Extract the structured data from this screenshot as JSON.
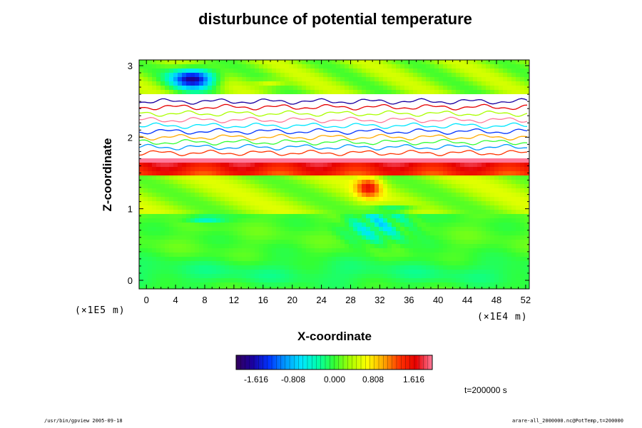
{
  "chart_data": {
    "type": "heatmap",
    "title": "disturbunce of potential temperature",
    "xlabel": "X-coordinate",
    "ylabel": "Z-coordinate",
    "x_unit": "(×1E4 m)",
    "y_unit": "(×1E5 m)",
    "x_ticks": [
      "0",
      "4",
      "8",
      "12",
      "16",
      "20",
      "24",
      "28",
      "32",
      "36",
      "40",
      "44",
      "48",
      "52"
    ],
    "y_ticks": [
      "0",
      "1",
      "2",
      "3"
    ],
    "xlim": [
      -1,
      52.5
    ],
    "ylim": [
      -0.12,
      3.08
    ],
    "colorbar": {
      "ticks": [
        "-1.616",
        "-0.808",
        "0.000",
        "0.808",
        "1.616"
      ],
      "range": [
        -2.2,
        2.2
      ],
      "colors": [
        "#33005a",
        "#1a00a0",
        "#0033ff",
        "#0099ff",
        "#00e6ff",
        "#00ffaa",
        "#33ff33",
        "#aaff00",
        "#ffff00",
        "#ffaa00",
        "#ff3300",
        "#e60000",
        "#ff7a9a"
      ]
    },
    "time_label": "t=200000 s",
    "regions": [
      {
        "z": [
          -0.12,
          0.95
        ],
        "value": 0.05,
        "note": "lower layer, near zero"
      },
      {
        "z": [
          0.95,
          1.45
        ],
        "value": 0.45,
        "note": "green-yellow band"
      },
      {
        "z": [
          1.45,
          1.72
        ],
        "value": 1.7,
        "note": "strong positive band"
      },
      {
        "z": [
          1.72,
          2.55
        ],
        "value": null,
        "note": "values out of range (blank)"
      },
      {
        "z": [
          2.55,
          3.08
        ],
        "value": 0.2,
        "note": "upper layer with negative patch near x=6"
      }
    ],
    "annotations": {
      "negative_plume_x": [
        26,
        38
      ],
      "negative_plume_z": [
        0.5,
        1.1
      ],
      "positive_core_x": [
        29,
        33
      ],
      "positive_core_z": [
        1.2,
        1.5
      ],
      "upper_negative_patch_x": [
        2,
        12
      ],
      "upper_negative_patch_z": [
        2.6,
        2.95
      ]
    }
  },
  "footer": {
    "left": "/usr/bin/gpview 2005-09-18",
    "right": "arare-all_2000000.nc@PotTemp,t=200000"
  }
}
